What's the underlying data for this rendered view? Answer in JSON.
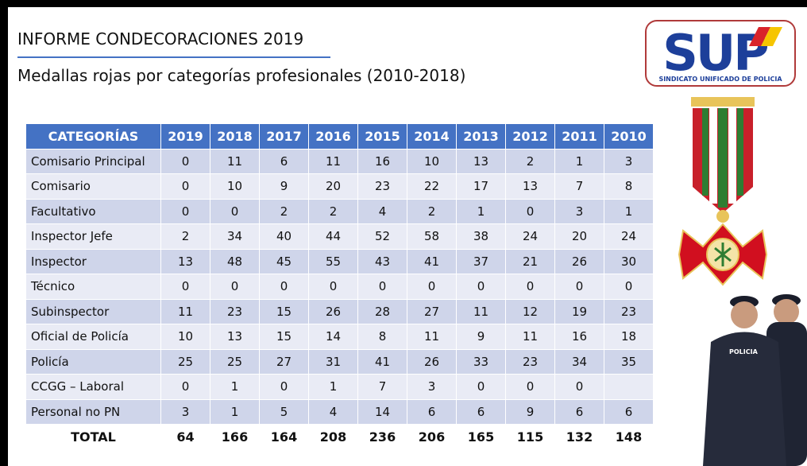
{
  "header": {
    "title": "INFORME CONDECORACIONES 2019",
    "subtitle": "Medallas rojas por categorías profesionales (2010-2018)"
  },
  "logo": {
    "text": "SUP",
    "subtitle": "SINDICATO UNIFICADO DE POLICIA"
  },
  "figure": {
    "patch": "POLICIA"
  },
  "table": {
    "columns": [
      "CATEGORÍAS",
      "2019",
      "2018",
      "2017",
      "2016",
      "2015",
      "2014",
      "2013",
      "2012",
      "2011",
      "2010"
    ],
    "rows": [
      [
        "Comisario Principal",
        0,
        11,
        6,
        11,
        16,
        10,
        13,
        2,
        1,
        3
      ],
      [
        "Comisario",
        0,
        10,
        9,
        20,
        23,
        22,
        17,
        13,
        7,
        8
      ],
      [
        "Facultativo",
        0,
        0,
        2,
        2,
        4,
        2,
        1,
        0,
        3,
        1
      ],
      [
        "Inspector Jefe",
        2,
        34,
        40,
        44,
        52,
        58,
        38,
        24,
        20,
        24
      ],
      [
        "Inspector",
        13,
        48,
        45,
        55,
        43,
        41,
        37,
        21,
        26,
        30
      ],
      [
        "Técnico",
        0,
        0,
        0,
        0,
        0,
        0,
        0,
        0,
        0,
        0
      ],
      [
        "Subinspector",
        11,
        23,
        15,
        26,
        28,
        27,
        11,
        12,
        19,
        23
      ],
      [
        "Oficial de Policía",
        10,
        13,
        15,
        14,
        8,
        11,
        9,
        11,
        16,
        18
      ],
      [
        "Policía",
        25,
        25,
        27,
        31,
        41,
        26,
        33,
        23,
        34,
        35
      ],
      [
        "CCGG – Laboral",
        0,
        1,
        0,
        1,
        7,
        3,
        0,
        0,
        0,
        null
      ],
      [
        "Personal no PN",
        3,
        1,
        5,
        4,
        14,
        6,
        6,
        9,
        6,
        6
      ]
    ],
    "total": [
      "TOTAL",
      64,
      166,
      164,
      208,
      236,
      206,
      165,
      115,
      132,
      148
    ]
  }
}
